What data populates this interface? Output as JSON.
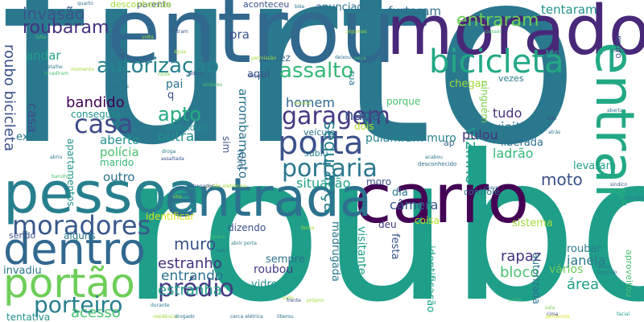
{
  "palette": {
    "dark_purple": "#440154",
    "indigo": "#46327e",
    "blue": "#365c8d",
    "teal_blue": "#277f8e",
    "teal": "#1fa187",
    "green": "#4ac16d",
    "yellow_green": "#a0da39",
    "yellow": "#d5e21a"
  },
  "words": [
    {
      "text": "furto",
      "color": "#2a788e"
    },
    {
      "text": "roubo",
      "color": "#1f9e89"
    },
    {
      "text": "entrou",
      "color": "#31688e"
    },
    {
      "text": "morador",
      "color": "#482878"
    },
    {
      "text": "carro",
      "color": "#440154"
    },
    {
      "text": "pessoa",
      "color": "#277f8e"
    },
    {
      "text": "entrada",
      "color": "#2c728e"
    },
    {
      "text": "entrar",
      "color": "#22a884"
    },
    {
      "text": "dentro",
      "color": "#31688e"
    },
    {
      "text": "portão",
      "color": "#6ece58"
    },
    {
      "text": "bicicleta",
      "color": "#22a884"
    },
    {
      "text": "moradores",
      "color": "#38598c"
    },
    {
      "text": "porta",
      "color": "#3b528b"
    },
    {
      "text": "garagem",
      "color": "#443a83"
    },
    {
      "text": "portaria",
      "color": "#2a788e"
    },
    {
      "text": "autorização",
      "color": "#26828e"
    },
    {
      "text": "assalto",
      "color": "#35b779"
    },
    {
      "text": "prédio",
      "color": "#443983"
    },
    {
      "text": "porteiro",
      "color": "#277f8e"
    },
    {
      "text": "casa",
      "color": "#3e4a89"
    },
    {
      "text": "roubaram",
      "color": "#46327e"
    },
    {
      "text": "invasão",
      "color": "#3b528b"
    },
    {
      "text": "apto",
      "color": "#25ab82"
    },
    {
      "text": "entraram",
      "color": "#6ece58"
    },
    {
      "text": "furtaram",
      "color": "#2e6f8e"
    },
    {
      "text": "tentaram",
      "color": "#20928c"
    },
    {
      "text": "muro",
      "color": "#3b528b"
    },
    {
      "text": "acesso",
      "color": "#4ac16d"
    },
    {
      "text": "roubo bicicleta",
      "color": "#3b528b"
    },
    {
      "text": "estranho",
      "color": "#46327e"
    },
    {
      "text": "estranha",
      "color": "#1fa187"
    },
    {
      "text": "entrando",
      "color": "#2c728e"
    },
    {
      "text": "vizinho",
      "color": "#1fa187"
    },
    {
      "text": "segurança",
      "color": "#26828e"
    },
    {
      "text": "moto",
      "color": "#3b528b"
    },
    {
      "text": "bandido",
      "color": "#440154"
    },
    {
      "text": "homem",
      "color": "#31688e"
    },
    {
      "text": "nada",
      "color": "#3b528b"
    },
    {
      "text": "situação",
      "color": "#1fa187"
    },
    {
      "text": "câmera",
      "color": "#38598c"
    },
    {
      "text": "rapaz",
      "color": "#46327e"
    },
    {
      "text": "janela",
      "color": "#2a788e"
    },
    {
      "text": "área",
      "color": "#1fa187"
    },
    {
      "text": "bloco",
      "color": "#4ac16d"
    },
    {
      "text": "visita",
      "color": "#2a788e"
    },
    {
      "text": "arrombamento",
      "color": "#2c728e"
    },
    {
      "text": "tudo",
      "color": "#46327e"
    },
    {
      "text": "ladrão",
      "color": "#35b779"
    },
    {
      "text": "liberada",
      "color": "#2e6f8e"
    },
    {
      "text": "pulou",
      "color": "#46327e"
    },
    {
      "text": "aberto",
      "color": "#20928c"
    },
    {
      "text": "polícia",
      "color": "#4ac16d"
    },
    {
      "text": "outra",
      "color": "#21918c"
    },
    {
      "text": "outro",
      "color": "#2c728e"
    },
    {
      "text": "casa",
      "color": "#3e4a89"
    },
    {
      "text": "andar",
      "color": "#1fa187"
    },
    {
      "text": "pra",
      "color": "#3b528b"
    },
    {
      "text": "aqui",
      "color": "#3b528b"
    },
    {
      "text": "vez",
      "color": "#31688e"
    },
    {
      "text": "levaram",
      "color": "#1fa187"
    },
    {
      "text": "chegar",
      "color": "#a0da39"
    },
    {
      "text": "vezes",
      "color": "#2a788e"
    },
    {
      "text": "porque",
      "color": "#4ac16d"
    },
    {
      "text": "ninguém",
      "color": "#7ad151"
    },
    {
      "text": "pulamram muro",
      "color": "#26828e"
    },
    {
      "text": "dia",
      "color": "#2a788e"
    },
    {
      "text": "dizendo",
      "color": "#3b528b"
    },
    {
      "text": "roubou",
      "color": "#443a83"
    },
    {
      "text": "sempre",
      "color": "#2c728e"
    },
    {
      "text": "vidro",
      "color": "#20928c"
    },
    {
      "text": "sistema",
      "color": "#a0da39"
    },
    {
      "text": "roubar",
      "color": "#2a788e"
    },
    {
      "text": "vários",
      "color": "#6ece58"
    },
    {
      "text": "deu",
      "color": "#46327e"
    },
    {
      "text": "coisa",
      "color": "#b5de2b"
    },
    {
      "text": "controle",
      "color": "#2a788e"
    },
    {
      "text": "moro",
      "color": "#3b528b"
    },
    {
      "text": "festa",
      "color": "#3b528b"
    },
    {
      "text": "visitante",
      "color": "#1fa187"
    },
    {
      "text": "madrugada",
      "color": "#2a788e"
    },
    {
      "text": "identificação",
      "color": "#1fa187"
    },
    {
      "text": "autorizada",
      "color": "#2c728e"
    },
    {
      "text": "aproveitou",
      "color": "#4ac16d"
    },
    {
      "text": "identificar",
      "color": "#d5e21a"
    },
    {
      "text": "sendo",
      "color": "#3b528b"
    },
    {
      "text": "alguns",
      "color": "#2a788e"
    },
    {
      "text": "invadiu",
      "color": "#2a788e"
    },
    {
      "text": "tentativa",
      "color": "#20928c"
    },
    {
      "text": "sim",
      "color": "#3b528b"
    },
    {
      "text": "apartamentos",
      "color": "#21918c"
    },
    {
      "text": "hora",
      "color": "#31688e"
    },
    {
      "text": "marido",
      "color": "#35b779"
    },
    {
      "text": "conseguiu",
      "color": "#20928c"
    },
    {
      "text": "indivíduo",
      "color": "#20928c"
    },
    {
      "text": "dois",
      "color": "#b5de2b"
    },
    {
      "text": "veículo",
      "color": "#2c728e"
    },
    {
      "text": "subiu",
      "color": "#26828e"
    },
    {
      "text": "anunciado",
      "color": "#2e6f8e"
    },
    {
      "text": "aconteceu",
      "color": "#3b528b"
    },
    {
      "text": "parente",
      "color": "#3b528b"
    },
    {
      "text": "desconhecida",
      "color": "#a0da39"
    },
    {
      "text": "ter",
      "color": "#1fa187"
    },
    {
      "text": "rua",
      "color": "#2a788e"
    },
    {
      "text": "pai",
      "color": "#2c728e"
    },
    {
      "text": "q",
      "color": "#3b528b"
    },
    {
      "text": "ex",
      "color": "#2a788e"
    },
    {
      "text": "ap",
      "color": "#31688e"
    },
    {
      "text": "ainda",
      "color": "#2a788e"
    },
    {
      "text": "muro",
      "color": "#3b528b"
    },
    {
      "text": "falta",
      "color": "#4ac16d"
    },
    {
      "text": "água",
      "color": "#a0da39"
    },
    {
      "text": "noite",
      "color": "#7ad151"
    },
    {
      "text": "andares",
      "color": "#4ac16d"
    },
    {
      "text": "quarto",
      "color": "#2c728e"
    },
    {
      "text": "chave",
      "color": "#2e6f8e"
    },
    {
      "text": "portão eletrônico",
      "color": "#a0da39"
    },
    {
      "text": "entregador",
      "color": "#3b528b"
    },
    {
      "text": "lado",
      "color": "#2c728e"
    },
    {
      "text": "abrir porta",
      "color": "#2a788e"
    },
    {
      "text": "liberou",
      "color": "#2c728e"
    },
    {
      "text": "cerca elétrica",
      "color": "#31688e"
    },
    {
      "text": "residência",
      "color": "#a0da39"
    },
    {
      "text": "drogado",
      "color": "#2c728e"
    },
    {
      "text": "durante",
      "color": "#2a788e"
    },
    {
      "text": "época",
      "color": "#4ac16d"
    },
    {
      "text": "síndico",
      "color": "#3b528b"
    },
    {
      "text": "convidados",
      "color": "#2a788e"
    },
    {
      "text": "facial",
      "color": "#1fa187"
    },
    {
      "text": "pertences",
      "color": "#d5e21a"
    },
    {
      "text": "junto",
      "color": "#4ac16d"
    },
    {
      "text": "segundo",
      "color": "#2a788e"
    },
    {
      "text": "levou",
      "color": "#2c728e"
    },
    {
      "text": "furto",
      "color": "#2a788e"
    },
    {
      "text": "fecha",
      "color": "#a0da39"
    },
    {
      "text": "cima",
      "color": "#3b528b"
    },
    {
      "text": "sala",
      "color": "#7ad151"
    },
    {
      "text": "todo",
      "color": "#a0da39"
    },
    {
      "text": "vizinha",
      "color": "#2e6f8e"
    },
    {
      "text": "uns",
      "color": "#a0da39"
    },
    {
      "text": "fazer",
      "color": "#d5e21a"
    },
    {
      "text": "próprio",
      "color": "#a0da39"
    },
    {
      "text": "frente",
      "color": "#3b528b"
    },
    {
      "text": "acabou",
      "color": "#2a788e"
    },
    {
      "text": "nenhuma",
      "color": "#2c728e"
    },
    {
      "text": "desconhecido",
      "color": "#2e6f8e"
    },
    {
      "text": "assaltante",
      "color": "#a0da39"
    },
    {
      "text": "entram",
      "color": "#3b528b"
    },
    {
      "text": "entregar",
      "color": "#a0da39"
    },
    {
      "text": "algumas",
      "color": "#a0da39"
    },
    {
      "text": "passos",
      "color": "#4ac16d"
    },
    {
      "text": "volta",
      "color": "#a0da39"
    },
    {
      "text": "pequenos",
      "color": "#3b528b"
    },
    {
      "text": "grade",
      "color": "#2c728e"
    },
    {
      "text": "bike",
      "color": "#2a788e"
    },
    {
      "text": "permissão",
      "color": "#a0da39"
    },
    {
      "text": "peça",
      "color": "#4ac16d"
    },
    {
      "text": "deixou",
      "color": "#2e6f8e"
    },
    {
      "text": "exposo",
      "color": "#3b528b"
    },
    {
      "text": "ladrões",
      "color": "#2c728e"
    },
    {
      "text": "ladrao",
      "color": "#3b528b"
    },
    {
      "text": "momento",
      "color": "#a0da39"
    },
    {
      "text": "detalhe",
      "color": "#2a788e"
    },
    {
      "text": "invadiram",
      "color": "#4ac16d"
    },
    {
      "text": "serviço",
      "color": "#a0da39"
    },
    {
      "text": "sido",
      "color": "#3b528b"
    },
    {
      "text": "atrás",
      "color": "#2c728e"
    },
    {
      "text": "aberta",
      "color": "#2c728e"
    },
    {
      "text": "muita",
      "color": "#3b528b"
    },
    {
      "text": "droga",
      "color": "#2a788e"
    },
    {
      "text": "assaltada",
      "color": "#3b528b"
    },
    {
      "text": "barulho",
      "color": "#4ac16d"
    },
    {
      "text": "tentou",
      "color": "#2c728e"
    },
    {
      "text": "abriu",
      "color": "#2c728e"
    },
    {
      "text": "simplesmente",
      "color": "#2a788e"
    },
    {
      "text": "objetos",
      "color": "#3b528b"
    },
    {
      "text": "fizeram",
      "color": "#2c728e"
    },
    {
      "text": "subir",
      "color": "#a0da39"
    },
    {
      "text": "irmão",
      "color": "#3b528b"
    },
    {
      "text": "sido",
      "color": "#3b528b"
    },
    {
      "text": "jogou",
      "color": "#2c728e"
    },
    {
      "text": "entretanto",
      "color": "#a0da39"
    },
    {
      "text": "falou",
      "color": "#2a788e"
    },
    {
      "text": "fácil",
      "color": "#a0da39"
    },
    {
      "text": "faz",
      "color": "#3b528b"
    },
    {
      "text": "rebelde",
      "color": "#a0da39"
    },
    {
      "text": "chamou",
      "color": "#2a788e"
    },
    {
      "text": "entraria",
      "color": "#a0da39"
    },
    {
      "text": "chegou",
      "color": "#2c728e"
    },
    {
      "text": "incursão",
      "color": "#a0da39"
    },
    {
      "text": "vir",
      "color": "#3b528b"
    },
    {
      "text": "deixaram",
      "color": "#a0da39"
    },
    {
      "text": "pois",
      "color": "#2c728e"
    },
    {
      "text": "passam",
      "color": "#3b528b"
    },
    {
      "text": "nenhum",
      "color": "#a0da39"
    },
    {
      "text": "tinha",
      "color": "#2a788e"
    },
    {
      "text": "casal",
      "color": "#3b528b"
    },
    {
      "text": "conta",
      "color": "#a0da39"
    },
    {
      "text": "pede",
      "color": "#3b528b"
    },
    {
      "text": "lojas",
      "color": "#a0da39"
    },
    {
      "text": "ela",
      "color": "#2c728e"
    },
    {
      "text": "vão",
      "color": "#3b528b"
    },
    {
      "text": "sim",
      "color": "#3b528b"
    }
  ]
}
